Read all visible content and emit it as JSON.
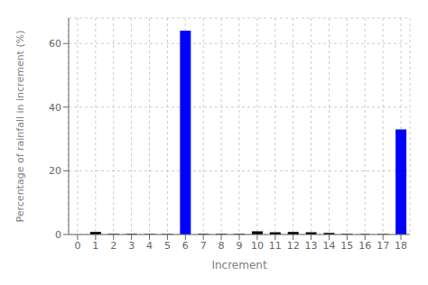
{
  "chart_data": {
    "type": "bar",
    "categories": [
      0,
      1,
      2,
      3,
      4,
      5,
      6,
      7,
      8,
      9,
      10,
      11,
      12,
      13,
      14,
      15,
      16,
      17,
      18
    ],
    "values": [
      0.0,
      0.8,
      0.2,
      0.2,
      0.15,
      0.15,
      64.0,
      0.2,
      0.2,
      0.2,
      1.0,
      0.7,
      0.8,
      0.7,
      0.5,
      0.2,
      0.15,
      0.15,
      33.0
    ],
    "colors": [
      "#000000",
      "#000000",
      "#000000",
      "#000000",
      "#000000",
      "#000000",
      "#0000ff",
      "#000000",
      "#000000",
      "#000000",
      "#000000",
      "#000000",
      "#000000",
      "#000000",
      "#000000",
      "#000000",
      "#000000",
      "#000000",
      "#0000ff"
    ],
    "x_label": "Increment",
    "y_label": "Percentage of rainfall in increment (%)",
    "ylim": [
      0,
      68
    ],
    "yticks": [
      0,
      20,
      40,
      60
    ],
    "grid": true
  }
}
